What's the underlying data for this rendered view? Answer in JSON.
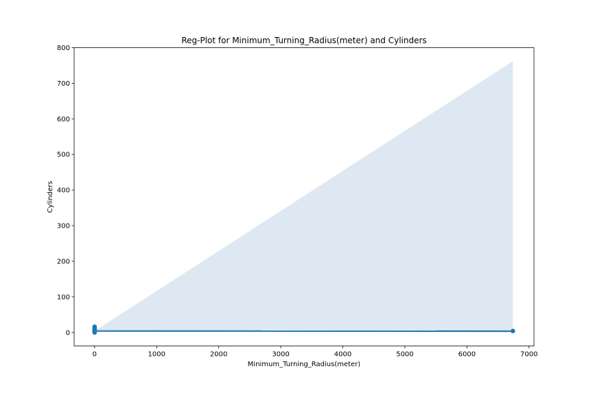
{
  "chart_data": {
    "type": "scatter",
    "title": "Reg-Plot for Minimum_Turning_Radius(meter) and Cylinders",
    "xlabel": "Minimum_Turning_Radius(meter)",
    "ylabel": "Cylinders",
    "xlim": [
      -330,
      7080
    ],
    "ylim": [
      -38,
      800
    ],
    "x_ticks": [
      0,
      1000,
      2000,
      3000,
      4000,
      5000,
      6000,
      7000
    ],
    "y_ticks": [
      0,
      100,
      200,
      300,
      400,
      500,
      600,
      700,
      800
    ],
    "grid": false,
    "points": [
      {
        "x": 0,
        "y": 0
      },
      {
        "x": 0,
        "y": 2
      },
      {
        "x": 0,
        "y": 3
      },
      {
        "x": 0,
        "y": 4
      },
      {
        "x": 0,
        "y": 5
      },
      {
        "x": 0,
        "y": 6
      },
      {
        "x": 0,
        "y": 8
      },
      {
        "x": 0,
        "y": 10
      },
      {
        "x": 0,
        "y": 12
      },
      {
        "x": 0,
        "y": 16
      },
      {
        "x": 6740,
        "y": 4
      }
    ],
    "regression_line": {
      "x": [
        0,
        6740
      ],
      "y": [
        4,
        3.5
      ]
    },
    "confidence_band": {
      "x": [
        0,
        6740
      ],
      "upper": [
        4,
        762
      ],
      "lower": [
        4,
        0
      ]
    },
    "colors": {
      "points": "#1f77b4",
      "line": "#1f77b4",
      "band": "#dde8f2"
    }
  }
}
